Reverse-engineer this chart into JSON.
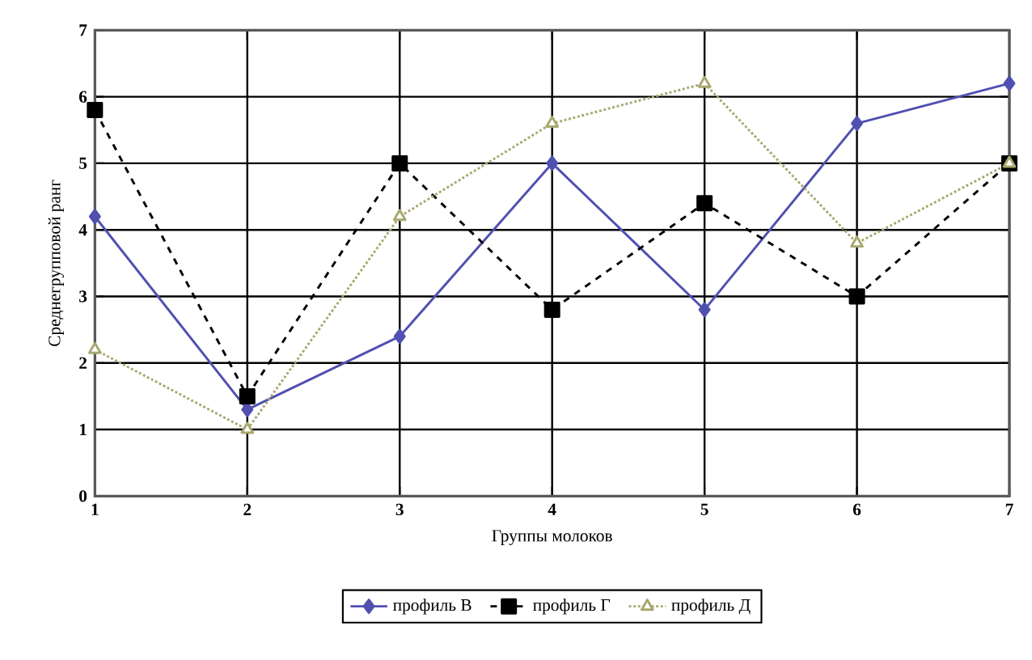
{
  "chart_data": {
    "type": "line",
    "xlabel": "Группы молоков",
    "ylabel": "Среднегрупповой ранг",
    "x": [
      1,
      2,
      3,
      4,
      5,
      6,
      7
    ],
    "xlim": [
      1,
      7
    ],
    "xticks": [
      1,
      2,
      3,
      4,
      5,
      6,
      7
    ],
    "ylim": [
      0,
      7
    ],
    "yticks": [
      0,
      1,
      2,
      3,
      4,
      5,
      6,
      7
    ],
    "grid": true,
    "legend": "bottom",
    "series": [
      {
        "name": "профиль В",
        "color": "#5050b0",
        "marker": "diamond",
        "line_style": "solid",
        "values": [
          4.2,
          1.3,
          2.4,
          5.0,
          2.8,
          5.6,
          6.2
        ]
      },
      {
        "name": "профиль Г",
        "color": "#000000",
        "marker": "square",
        "line_style": "dashed",
        "values": [
          5.8,
          1.5,
          5.0,
          2.8,
          4.4,
          3.0,
          5.0
        ]
      },
      {
        "name": "профиль Д",
        "color": "#a8a870",
        "marker": "triangle",
        "line_style": "dotted",
        "values": [
          2.2,
          1.0,
          4.2,
          5.6,
          6.2,
          3.8,
          5.0
        ]
      }
    ]
  }
}
